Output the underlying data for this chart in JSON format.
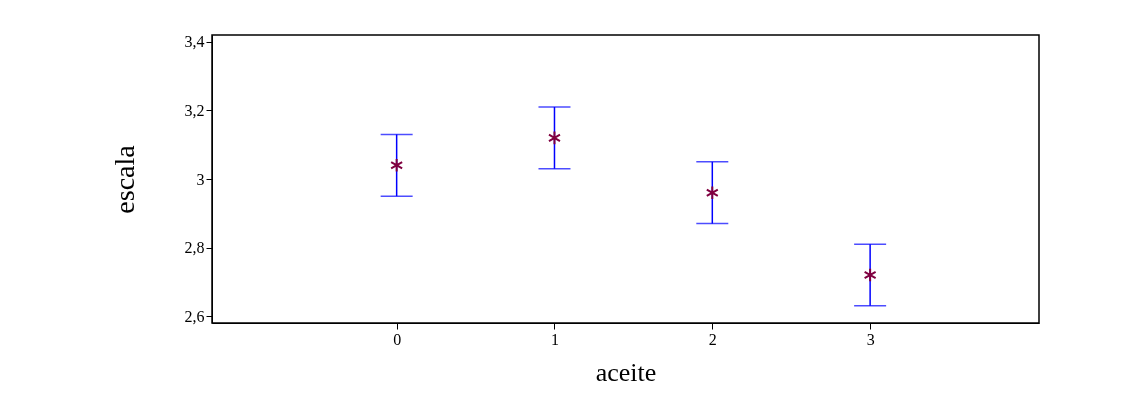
{
  "chart_data": {
    "type": "scatter",
    "xlabel": "aceite",
    "ylabel": "escala",
    "x": [
      0,
      1,
      2,
      3
    ],
    "values": [
      3.04,
      3.12,
      2.96,
      2.72
    ],
    "errors": [
      0.09,
      0.09,
      0.09,
      0.09
    ],
    "color": "#800040",
    "marker": "cross",
    "grid": false,
    "xlim": [
      -1.17,
      4.07
    ],
    "xticks": [
      0,
      1,
      2,
      3
    ],
    "ylim": [
      2.58,
      3.42
    ],
    "yticks": [
      {
        "value": 2.6,
        "label": "2,6"
      },
      {
        "value": 2.8,
        "label": "2,8"
      },
      3,
      {
        "value": 3.2,
        "label": "3,2"
      },
      {
        "value": 3.4,
        "label": "3,4"
      }
    ]
  }
}
